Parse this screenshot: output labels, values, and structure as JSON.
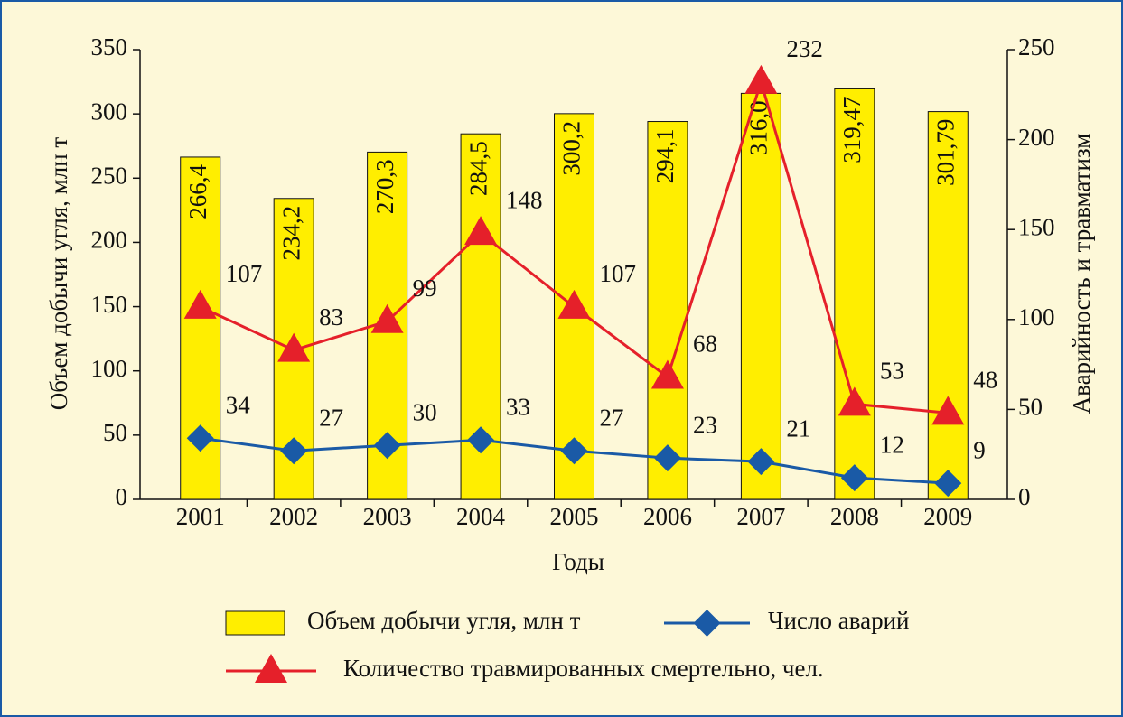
{
  "chart_data": {
    "type": "bar",
    "x_label": "Годы",
    "y_label": "Объем добычи угля, млн т",
    "y2_label": "Аварийность и травматизм",
    "categories": [
      "2001",
      "2002",
      "2003",
      "2004",
      "2005",
      "2006",
      "2007",
      "2008",
      "2009"
    ],
    "series": [
      {
        "name": "Объем добычи угля, млн т",
        "type": "bar",
        "color": "#ffee00",
        "axis": "y",
        "values": [
          266.4,
          234.2,
          270.3,
          284.5,
          300.2,
          294.1,
          316.0,
          319.47,
          301.79
        ],
        "value_labels": [
          "266,4",
          "234,2",
          "270,3",
          "284,5",
          "300,2",
          "294,1",
          "316,0",
          "319,47",
          "301,79"
        ]
      },
      {
        "name": "Число аварий",
        "type": "line",
        "color": "#1a5aa6",
        "axis": "y2",
        "values": [
          34,
          27,
          30,
          33,
          27,
          23,
          21,
          12,
          9
        ]
      },
      {
        "name": "Количество травмированных смертельно, чел.",
        "type": "line",
        "color": "#e5202a",
        "axis": "y2",
        "values": [
          107,
          83,
          99,
          148,
          107,
          68,
          232,
          53,
          48
        ]
      }
    ],
    "ylim": [
      0,
      350
    ],
    "yticks": [
      0,
      50,
      100,
      150,
      200,
      250,
      300,
      350
    ],
    "y2lim": [
      0,
      250
    ],
    "y2ticks": [
      0,
      50,
      100,
      150,
      200,
      250
    ]
  }
}
